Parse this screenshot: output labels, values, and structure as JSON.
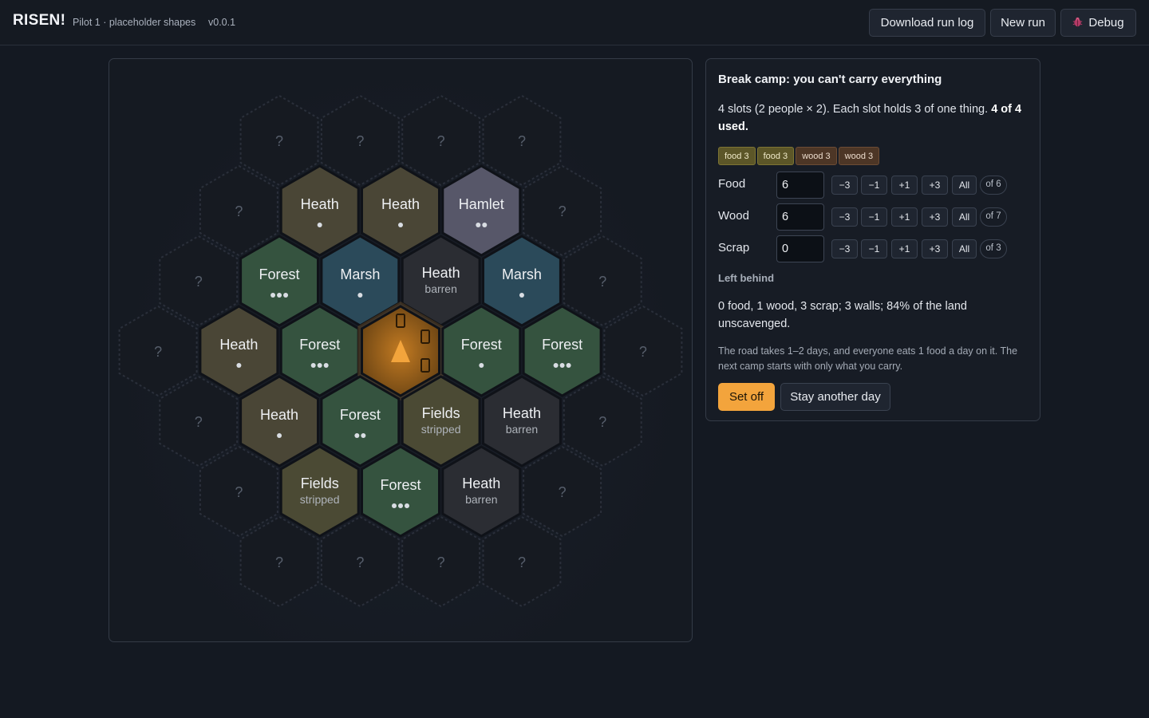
{
  "header": {
    "brand": "RISEN!",
    "subtitle": "Pilot 1 · placeholder shapes",
    "version": "v0.0.1",
    "download_label": "Download run log",
    "new_run_label": "New run",
    "debug_label": "Debug",
    "debug_icon": "bug-icon"
  },
  "colors": {
    "accent": "#f3a43c",
    "heath": "#4a4636",
    "forest": "#35533f",
    "marsh": "#2b4a5a",
    "hamlet": "#575769",
    "fields": "#4b4a34",
    "barren": "#2b2d33",
    "unknown": "#161a21",
    "camp": "#8a5a18"
  },
  "map": {
    "unknown_mark": "?",
    "camp_icon": "tent-icon",
    "tiles": [
      {
        "row": 1,
        "col": 1,
        "type": "heath",
        "name": "Heath",
        "pips": 1
      },
      {
        "row": 1,
        "col": 2,
        "type": "heath",
        "name": "Heath",
        "pips": 1
      },
      {
        "row": 1,
        "col": 3,
        "type": "hamlet",
        "name": "Hamlet",
        "pips": 2
      },
      {
        "row": 2,
        "col": 1,
        "type": "forest",
        "name": "Forest",
        "pips": 3
      },
      {
        "row": 2,
        "col": 2,
        "type": "marsh",
        "name": "Marsh",
        "pips": 1
      },
      {
        "row": 2,
        "col": 3,
        "type": "barren",
        "name": "Heath",
        "sub": "barren"
      },
      {
        "row": 2,
        "col": 4,
        "type": "marsh",
        "name": "Marsh",
        "pips": 1
      },
      {
        "row": 3,
        "col": 1,
        "type": "heath",
        "name": "Heath",
        "pips": 1
      },
      {
        "row": 3,
        "col": 2,
        "type": "forest",
        "name": "Forest",
        "pips": 3
      },
      {
        "row": 3,
        "col": 3,
        "type": "camp",
        "camp": true
      },
      {
        "row": 3,
        "col": 4,
        "type": "forest",
        "name": "Forest",
        "pips": 1
      },
      {
        "row": 3,
        "col": 5,
        "type": "forest",
        "name": "Forest",
        "pips": 3
      },
      {
        "row": 4,
        "col": 1,
        "type": "heath",
        "name": "Heath",
        "pips": 1
      },
      {
        "row": 4,
        "col": 2,
        "type": "forest",
        "name": "Forest",
        "pips": 2
      },
      {
        "row": 4,
        "col": 3,
        "type": "fields",
        "name": "Fields",
        "sub": "stripped"
      },
      {
        "row": 4,
        "col": 4,
        "type": "barren",
        "name": "Heath",
        "sub": "barren"
      },
      {
        "row": 5,
        "col": 1,
        "type": "fields",
        "name": "Fields",
        "sub": "stripped"
      },
      {
        "row": 5,
        "col": 2,
        "type": "forest",
        "name": "Forest",
        "pips": 3
      },
      {
        "row": 5,
        "col": 3,
        "type": "barren",
        "name": "Heath",
        "sub": "barren"
      }
    ]
  },
  "panel": {
    "title": "Break camp: you can't carry everything",
    "desc_text": "4 slots (2 people × 2). Each slot holds 3 of one thing. ",
    "desc_bold": "4 of 4 used.",
    "chips": [
      {
        "kind": "food",
        "label": "food 3"
      },
      {
        "kind": "food",
        "label": "food 3"
      },
      {
        "kind": "wood",
        "label": "wood 3"
      },
      {
        "kind": "wood",
        "label": "wood 3"
      }
    ],
    "step_labels": [
      "−3",
      "−1",
      "+1",
      "+3",
      "All"
    ],
    "resources": [
      {
        "label": "Food",
        "value": "6",
        "of": "of 6"
      },
      {
        "label": "Wood",
        "value": "6",
        "of": "of 7"
      },
      {
        "label": "Scrap",
        "value": "0",
        "of": "of 3"
      }
    ],
    "left_behind_heading": "Left behind",
    "summary": "0 food, 1 wood, 3 scrap; 3 walls; 84% of the land unscavenged.",
    "note": "The road takes 1–2 days, and everyone eats 1 food a day on it. The next camp starts with only what you carry.",
    "set_off_label": "Set off",
    "stay_label": "Stay another day"
  }
}
